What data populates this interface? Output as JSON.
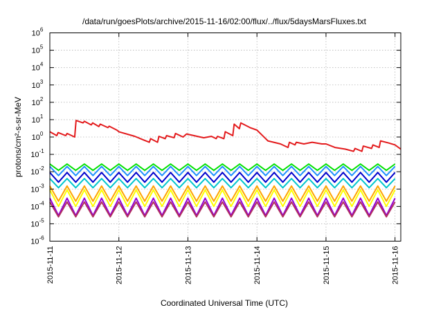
{
  "chart_data": {
    "type": "line",
    "title": "/data/run/goesPlots/archive/2015-11-16/02:00/flux/../flux/5daysMarsFluxes.txt",
    "xlabel": "Coordinated Universal Time (UTC)",
    "ylabel": "protons/cm²-s-sr-MeV",
    "xlim": [
      "2015-11-11",
      "2015-11-16 02:00"
    ],
    "ylim": [
      1e-06,
      1000000.0
    ],
    "yscale": "log",
    "grid": true,
    "x_ticks": [
      "2015-11-11",
      "2015-11-12",
      "2015-11-13",
      "2015-11-14",
      "2015-11-15",
      "2015-11-16"
    ],
    "y_ticks": [
      {
        "value": 1e-06,
        "base": "10",
        "exp": "-6"
      },
      {
        "value": 1e-05,
        "base": "10",
        "exp": "-5"
      },
      {
        "value": 0.0001,
        "base": "10",
        "exp": "-4"
      },
      {
        "value": 0.001,
        "base": "10",
        "exp": "-3"
      },
      {
        "value": 0.01,
        "base": "10",
        "exp": "-2"
      },
      {
        "value": 0.1,
        "base": "10",
        "exp": "-1"
      },
      {
        "value": 1,
        "base": "10",
        "exp": "0"
      },
      {
        "value": 10,
        "base": "10",
        "exp": "1"
      },
      {
        "value": 100,
        "base": "10",
        "exp": "2"
      },
      {
        "value": 1000,
        "base": "10",
        "exp": "3"
      },
      {
        "value": 10000,
        "base": "10",
        "exp": "4"
      },
      {
        "value": 100000,
        "base": "10",
        "exp": "5"
      },
      {
        "value": 1000000,
        "base": "10",
        "exp": "6"
      }
    ],
    "series": [
      {
        "color": "#e31a1c",
        "points": [
          [
            "2015-11-11 00:00",
            2.0
          ],
          [
            "2015-11-11 02:24",
            1.2
          ],
          [
            "2015-11-11 02:53",
            1.8
          ],
          [
            "2015-11-11 05:31",
            1.2
          ],
          [
            "2015-11-11 06:00",
            1.6
          ],
          [
            "2015-11-11 08:38",
            1.0
          ],
          [
            "2015-11-11 09:07",
            9.0
          ],
          [
            "2015-11-11 11:31",
            6.5
          ],
          [
            "2015-11-11 12:00",
            8.0
          ],
          [
            "2015-11-11 14:24",
            5.0
          ],
          [
            "2015-11-11 14:53",
            6.5
          ],
          [
            "2015-11-11 17:02",
            4.0
          ],
          [
            "2015-11-11 17:31",
            5.5
          ],
          [
            "2015-11-11 20:10",
            3.5
          ],
          [
            "2015-11-11 20:38",
            4.2
          ],
          [
            "2015-11-11 23:17",
            2.5
          ],
          [
            "2015-11-12 00:00",
            2.0
          ],
          [
            "2015-11-12 05:31",
            1.1
          ],
          [
            "2015-11-12 08:24",
            0.7
          ],
          [
            "2015-11-12 10:34",
            0.5
          ],
          [
            "2015-11-12 11:02",
            0.8
          ],
          [
            "2015-11-12 13:26",
            0.5
          ],
          [
            "2015-11-12 13:55",
            1.1
          ],
          [
            "2015-11-12 16:05",
            0.8
          ],
          [
            "2015-11-12 16:34",
            1.2
          ],
          [
            "2015-11-12 19:12",
            0.9
          ],
          [
            "2015-11-12 19:41",
            1.6
          ],
          [
            "2015-11-12 22:19",
            1.0
          ],
          [
            "2015-11-12 23:31",
            1.5
          ],
          [
            "2015-11-13 05:31",
            0.9
          ],
          [
            "2015-11-13 08:10",
            1.1
          ],
          [
            "2015-11-13 09:50",
            0.8
          ],
          [
            "2015-11-13 10:19",
            1.1
          ],
          [
            "2015-11-13 12:29",
            0.8
          ],
          [
            "2015-11-13 12:58",
            2.0
          ],
          [
            "2015-11-13 15:36",
            1.2
          ],
          [
            "2015-11-13 16:05",
            5.5
          ],
          [
            "2015-11-13 17:53",
            3.0
          ],
          [
            "2015-11-13 18:24",
            6.5
          ],
          [
            "2015-11-13 21:36",
            3.5
          ],
          [
            "2015-11-14 00:00",
            2.5
          ],
          [
            "2015-11-14 03:50",
            0.6
          ],
          [
            "2015-11-14 08:10",
            0.4
          ],
          [
            "2015-11-14 10:48",
            0.25
          ],
          [
            "2015-11-14 11:17",
            0.5
          ],
          [
            "2015-11-14 13:12",
            0.35
          ],
          [
            "2015-11-14 13:41",
            0.5
          ],
          [
            "2015-11-14 16:19",
            0.4
          ],
          [
            "2015-11-14 19:12",
            0.5
          ],
          [
            "2015-11-14 22:34",
            0.4
          ],
          [
            "2015-11-15 00:00",
            0.4
          ],
          [
            "2015-11-15 03:07",
            0.25
          ],
          [
            "2015-11-15 06:43",
            0.2
          ],
          [
            "2015-11-15 09:36",
            0.15
          ],
          [
            "2015-11-15 10:05",
            0.22
          ],
          [
            "2015-11-15 12:29",
            0.15
          ],
          [
            "2015-11-15 12:58",
            0.3
          ],
          [
            "2015-11-15 15:50",
            0.22
          ],
          [
            "2015-11-15 16:19",
            0.35
          ],
          [
            "2015-11-15 18:29",
            0.25
          ],
          [
            "2015-11-15 18:58",
            0.6
          ],
          [
            "2015-11-15 21:50",
            0.45
          ],
          [
            "2015-11-16 00:00",
            0.35
          ],
          [
            "2015-11-16 02:00",
            0.2
          ]
        ]
      },
      {
        "color": "#00e000",
        "sawtooth": {
          "top": 0.028,
          "bottom": 0.012
        }
      },
      {
        "color": "#1e90ff",
        "sawtooth": {
          "top": 0.02,
          "bottom": 0.006
        }
      },
      {
        "color": "#0000cd",
        "sawtooth": {
          "top": 0.009,
          "bottom": 0.0025
        }
      },
      {
        "color": "#00c5cd",
        "sawtooth": {
          "top": 0.004,
          "bottom": 0.0012
        }
      },
      {
        "color": "#ffa500",
        "sawtooth": {
          "top": 0.0015,
          "bottom": 0.0002
        }
      },
      {
        "color": "#ffff00",
        "sawtooth": {
          "top": 0.0009,
          "bottom": 0.0001
        }
      },
      {
        "color": "#9400d3",
        "sawtooth": {
          "top": 0.0003,
          "bottom": 3e-05
        }
      },
      {
        "color": "#b03060",
        "sawtooth": {
          "top": 0.00018,
          "bottom": 2.5e-05
        }
      }
    ]
  }
}
